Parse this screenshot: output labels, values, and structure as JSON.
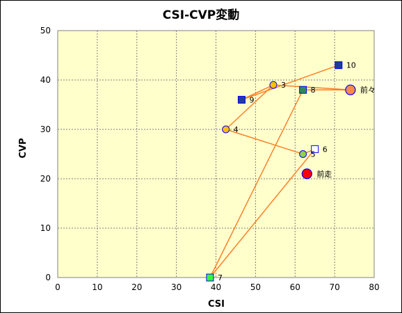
{
  "chart_data": {
    "type": "scatter",
    "title": "CSI-CVP変動",
    "xlabel": "CSI",
    "ylabel": "CVP",
    "xlim": [
      0,
      80
    ],
    "ylim": [
      0,
      50
    ],
    "x_ticks": [
      "0",
      "10",
      "20",
      "30",
      "40",
      "50",
      "60",
      "70",
      "80"
    ],
    "y_ticks": [
      "0",
      "10",
      "20",
      "30",
      "40",
      "50"
    ],
    "grid": true,
    "legend": "none",
    "colors": {
      "plot_bg": "#ffffcc",
      "line": "#ff7f27",
      "grid": "#7f7f7f",
      "marker_edge": "#0000ff"
    },
    "line_order": [
      "10",
      "9",
      "3",
      "前々",
      "8",
      "7",
      "6",
      "5",
      "4",
      "3"
    ],
    "points": [
      {
        "label": "10",
        "x": 71,
        "y": 43,
        "marker": "square",
        "fill": "#1f3d99"
      },
      {
        "label": "9",
        "x": 46.5,
        "y": 36,
        "marker": "square",
        "fill": "#1f3d99"
      },
      {
        "label": "3",
        "x": 54.5,
        "y": 39,
        "marker": "circle",
        "fill": "#ffc000"
      },
      {
        "label": "前々",
        "x": 74,
        "y": 38,
        "marker": "circle-large",
        "fill": "#ff8c42"
      },
      {
        "label": "8",
        "x": 62,
        "y": 38,
        "marker": "square",
        "fill": "#2e8b57"
      },
      {
        "label": "7",
        "x": 38.5,
        "y": 0,
        "marker": "square",
        "fill": "#33ff33"
      },
      {
        "label": "6",
        "x": 65,
        "y": 26,
        "marker": "square",
        "fill": "#ffffff"
      },
      {
        "label": "5",
        "x": 62,
        "y": 25,
        "marker": "circle",
        "fill": "#92d050"
      },
      {
        "label": "4",
        "x": 42.5,
        "y": 30,
        "marker": "circle",
        "fill": "#ffc000"
      },
      {
        "label": "前走",
        "x": 63,
        "y": 21,
        "marker": "circle-large",
        "fill": "#ff0000"
      }
    ]
  }
}
